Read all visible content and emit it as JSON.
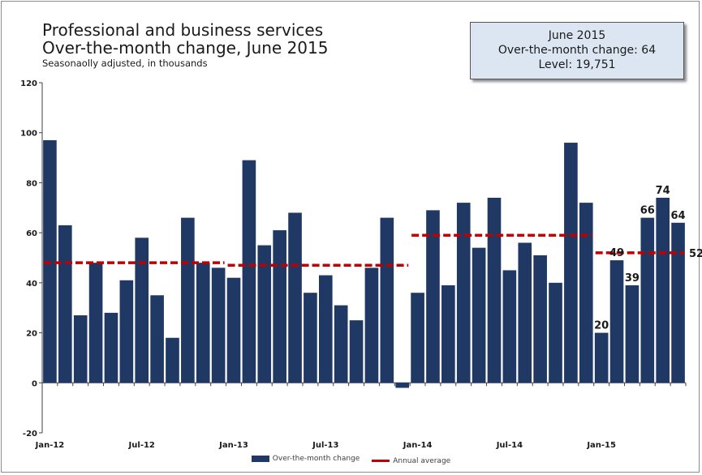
{
  "title_line1": "Professional and business services",
  "title_line2": "Over-the-month change, June 2015",
  "subtitle": "Seasonaolly adjusted, in thousands",
  "callout": {
    "line1": "June 2015",
    "line2": "Over-the-month change: 64",
    "line3": "Level: 19,751"
  },
  "legend": {
    "bar_label": "Over-the-month change",
    "line_label": "Annual average"
  },
  "colors": {
    "bar": "#1f3864",
    "average_line": "#c00000"
  },
  "chart_data": {
    "type": "bar",
    "title": "Professional and business services",
    "subtitle": "Over-the-month change, June 2015",
    "ylim": [
      -20,
      120
    ],
    "yticks": [
      -20,
      0,
      20,
      40,
      60,
      80,
      100,
      120
    ],
    "grid": false,
    "x_tick_labels": [
      {
        "index": 0,
        "label": "Jan-12"
      },
      {
        "index": 6,
        "label": "Jul-12"
      },
      {
        "index": 12,
        "label": "Jan-13"
      },
      {
        "index": 18,
        "label": "Jul-13"
      },
      {
        "index": 24,
        "label": "Jan-14"
      },
      {
        "index": 30,
        "label": "Jul-14"
      },
      {
        "index": 36,
        "label": "Jan-15"
      }
    ],
    "months": [
      "Jan 2012",
      "Feb 2012",
      "Mar 2012",
      "Apr 2012",
      "May 2012",
      "Jun 2012",
      "Jul 2012",
      "Aug 2012",
      "Sep 2012",
      "Oct 2012",
      "Nov 2012",
      "Dec 2012",
      "Jan 2013",
      "Feb 2013",
      "Mar 2013",
      "Apr 2013",
      "May 2013",
      "Jun 2013",
      "Jul 2013",
      "Aug 2013",
      "Sep 2013",
      "Oct 2013",
      "Nov 2013",
      "Dec 2013",
      "Jan 2014",
      "Feb 2014",
      "Mar 2014",
      "Apr 2014",
      "May 2014",
      "Jun 2014",
      "Jul 2014",
      "Aug 2014",
      "Sep 2014",
      "Oct 2014",
      "Nov 2014",
      "Dec 2014",
      "Jan 2015",
      "Feb 2015",
      "Mar 2015",
      "Apr 2015",
      "May 2015",
      "Jun 2015"
    ],
    "series": [
      {
        "name": "Over-the-month change",
        "values": [
          97,
          63,
          27,
          48,
          28,
          41,
          58,
          35,
          18,
          66,
          48,
          46,
          42,
          89,
          55,
          61,
          68,
          36,
          43,
          31,
          25,
          46,
          66,
          -2,
          36,
          69,
          39,
          72,
          54,
          74,
          45,
          56,
          51,
          40,
          96,
          72,
          20,
          49,
          39,
          66,
          74,
          64
        ]
      }
    ],
    "data_labels": [
      {
        "index": 36,
        "value": "20"
      },
      {
        "index": 37,
        "value": "49"
      },
      {
        "index": 38,
        "value": "39"
      },
      {
        "index": 39,
        "value": "66"
      },
      {
        "index": 40,
        "value": "74"
      },
      {
        "index": 41,
        "value": "64"
      }
    ],
    "annual_averages": [
      {
        "name": "Annual average",
        "year": "2012",
        "start_index": 0,
        "end_index": 11,
        "value": 48
      },
      {
        "name": "Annual average",
        "year": "2013",
        "start_index": 12,
        "end_index": 23,
        "value": 47
      },
      {
        "name": "Annual average",
        "year": "2014",
        "start_index": 24,
        "end_index": 35,
        "value": 59
      },
      {
        "name": "Annual average",
        "year": "2015",
        "start_index": 36,
        "end_index": 41,
        "value": 52,
        "label": "52"
      }
    ]
  }
}
